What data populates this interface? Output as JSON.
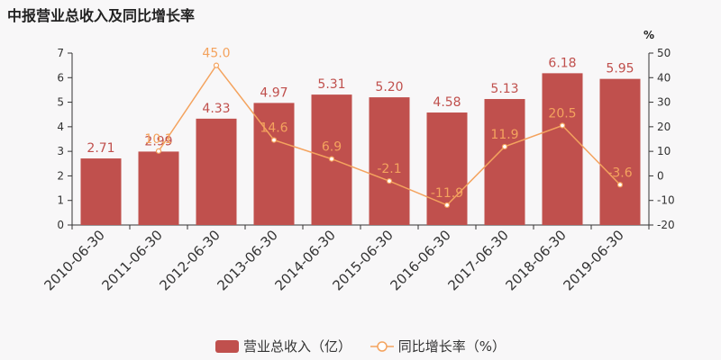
{
  "title": "中报营业总收入及同比增长率",
  "colors": {
    "bar": "#c0504d",
    "line": "#f4a35e",
    "bar_label": "#c0504d",
    "line_label": "#f4a35e",
    "axis_text": "#333333",
    "axis_line": "#333333"
  },
  "chart_data": {
    "type": "bar",
    "categories": [
      "2010-06-30",
      "2011-06-30",
      "2012-06-30",
      "2013-06-30",
      "2014-06-30",
      "2015-06-30",
      "2016-06-30",
      "2017-06-30",
      "2018-06-30",
      "2019-06-30"
    ],
    "series": [
      {
        "name": "营业总收入（亿）",
        "type": "bar",
        "axis": "left",
        "values": [
          2.71,
          2.99,
          4.33,
          4.97,
          5.31,
          5.2,
          4.58,
          5.13,
          6.18,
          5.95
        ],
        "labels": [
          "2.71",
          "2.99",
          "4.33",
          "4.97",
          "5.31",
          "5.20",
          "4.58",
          "5.13",
          "6.18",
          "5.95"
        ]
      },
      {
        "name": "同比增长率（%）",
        "type": "line",
        "axis": "right",
        "values": [
          null,
          10.1,
          45.0,
          14.6,
          6.9,
          -2.1,
          -11.9,
          11.9,
          20.5,
          -3.6
        ],
        "labels": [
          "",
          "10.1",
          "45.0",
          "14.6",
          "6.9",
          "-2.1",
          "-11.9",
          "11.9",
          "20.5",
          "-3.6"
        ]
      }
    ],
    "y_left": {
      "min": 0,
      "max": 7,
      "ticks": [
        0,
        1,
        2,
        3,
        4,
        5,
        6,
        7
      ]
    },
    "y_right": {
      "min": -20,
      "max": 50,
      "ticks": [
        -20,
        -10,
        0,
        10,
        20,
        30,
        40,
        50
      ],
      "unit": "%"
    },
    "legend": "bottom-center",
    "grid": false
  }
}
